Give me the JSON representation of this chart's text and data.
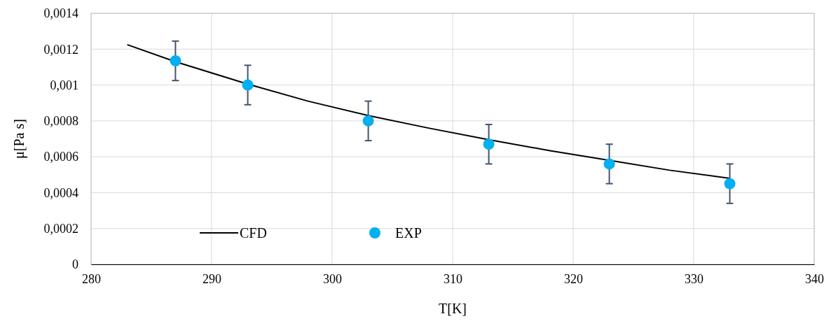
{
  "chart_data": {
    "type": "line",
    "xlabel": "T[K]",
    "ylabel": "μ[Pa s]",
    "xlim": [
      280,
      340
    ],
    "xticks": [
      280,
      290,
      300,
      310,
      320,
      330,
      340
    ],
    "ylim": [
      0,
      0.0014
    ],
    "yticks": [
      {
        "value": 0,
        "label": "0"
      },
      {
        "value": 0.0002,
        "label": "0,0002"
      },
      {
        "value": 0.0004,
        "label": "0,0004"
      },
      {
        "value": 0.0006,
        "label": "0,0006"
      },
      {
        "value": 0.0008,
        "label": "0,0008"
      },
      {
        "value": 0.001,
        "label": "0,001"
      },
      {
        "value": 0.0012,
        "label": "0,0012"
      },
      {
        "value": 0.0014,
        "label": "0,0014"
      }
    ],
    "grid": true,
    "legend": "bottom left",
    "series": [
      {
        "name": "CFD",
        "color": "#000000",
        "marker": "none",
        "line_style": "solid",
        "x": [
          283,
          287,
          293,
          298,
          303,
          308,
          313,
          318,
          323,
          328,
          333
        ],
        "values": [
          0.001225,
          0.00113,
          0.001005,
          0.00091,
          0.00083,
          0.00076,
          0.000695,
          0.000635,
          0.00058,
          0.000525,
          0.00048
        ]
      },
      {
        "name": "EXP",
        "type": "scatter",
        "color": "#00b0f0",
        "marker": "circle",
        "x": [
          287,
          293,
          303,
          313,
          323,
          333
        ],
        "values": [
          0.001135,
          0.001,
          0.0008,
          0.00067,
          0.00056,
          0.00045
        ],
        "errors": [
          0.00011,
          0.00011,
          0.00011,
          0.00011,
          0.00011,
          0.00011
        ]
      }
    ]
  }
}
